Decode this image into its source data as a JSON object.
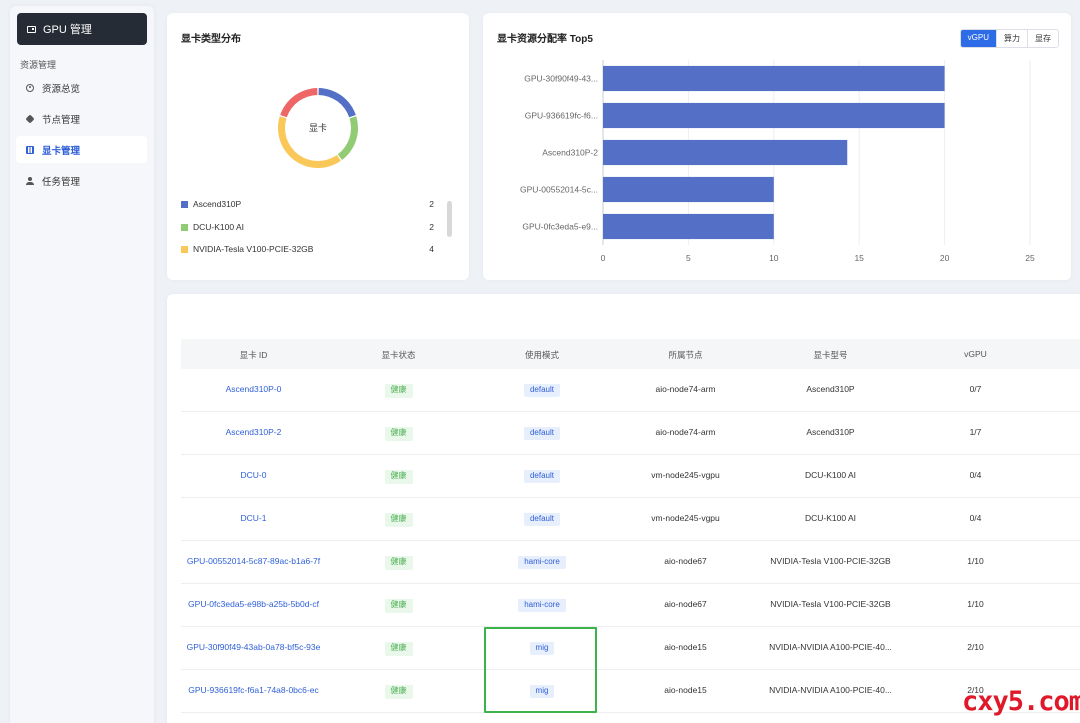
{
  "sidebar": {
    "brand": "GPU 管理",
    "section_title": "资源管理",
    "items": [
      {
        "label": "资源总览",
        "icon": "overview-icon"
      },
      {
        "label": "节点管理",
        "icon": "node-icon"
      },
      {
        "label": "显卡管理",
        "icon": "gpu-card-icon"
      },
      {
        "label": "任务管理",
        "icon": "task-icon"
      }
    ]
  },
  "pie_card": {
    "title": "显卡类型分布",
    "center_label": "显卡",
    "legend": [
      {
        "name": "Ascend310P",
        "value": "2",
        "color": "#5470c6"
      },
      {
        "name": "DCU-K100 AI",
        "value": "2",
        "color": "#91cc75"
      },
      {
        "name": "NVIDIA-Tesla V100-PCIE-32GB",
        "value": "4",
        "color": "#fac858"
      }
    ]
  },
  "bar_card": {
    "title": "显卡资源分配率 Top5",
    "tabs": [
      "vGPU",
      "算力",
      "显存"
    ],
    "active_tab": "vGPU"
  },
  "chart_data": [
    {
      "type": "pie",
      "title": "显卡类型分布",
      "categories": [
        "Ascend310P",
        "DCU-K100 AI",
        "NVIDIA-Tesla V100-PCIE-32GB",
        "NVIDIA-NVIDIA A100-PCIE-40..."
      ],
      "values": [
        2,
        2,
        4,
        2
      ],
      "colors": [
        "#5470c6",
        "#91cc75",
        "#fac858",
        "#ee6666"
      ],
      "center_label": "显卡"
    },
    {
      "type": "bar",
      "orientation": "horizontal",
      "title": "显卡资源分配率 Top5",
      "categories": [
        "GPU-30f90f49-43...",
        "GPU-936619fc-f6...",
        "Ascend310P-2",
        "GPU-00552014-5c...",
        "GPU-0fc3eda5-e9..."
      ],
      "values": [
        20,
        20,
        14.3,
        10,
        10
      ],
      "xlim": [
        0,
        25
      ],
      "xticks": [
        0,
        5,
        10,
        15,
        20,
        25
      ],
      "color": "#5470c6",
      "grid": true
    }
  ],
  "table": {
    "columns": [
      "显卡 ID",
      "显卡状态",
      "使用模式",
      "所属节点",
      "显卡型号",
      "vGPU"
    ],
    "rows": [
      {
        "id": "Ascend310P-0",
        "status": "健康",
        "mode": "default",
        "node": "aio-node74-arm",
        "model": "Ascend310P",
        "vgpu": "0/7"
      },
      {
        "id": "Ascend310P-2",
        "status": "健康",
        "mode": "default",
        "node": "aio-node74-arm",
        "model": "Ascend310P",
        "vgpu": "1/7"
      },
      {
        "id": "DCU-0",
        "status": "健康",
        "mode": "default",
        "node": "vm-node245-vgpu",
        "model": "DCU-K100 AI",
        "vgpu": "0/4"
      },
      {
        "id": "DCU-1",
        "status": "健康",
        "mode": "default",
        "node": "vm-node245-vgpu",
        "model": "DCU-K100 AI",
        "vgpu": "0/4"
      },
      {
        "id": "GPU-00552014-5c87-89ac-b1a6-7f",
        "status": "健康",
        "mode": "hami-core",
        "node": "aio-node67",
        "model": "NVIDIA-Tesla V100-PCIE-32GB",
        "vgpu": "1/10"
      },
      {
        "id": "GPU-0fc3eda5-e98b-a25b-5b0d-cf",
        "status": "健康",
        "mode": "hami-core",
        "node": "aio-node67",
        "model": "NVIDIA-Tesla V100-PCIE-32GB",
        "vgpu": "1/10"
      },
      {
        "id": "GPU-30f90f49-43ab-0a78-bf5c-93e",
        "status": "健康",
        "mode": "mig",
        "node": "aio-node15",
        "model": "NVIDIA-NVIDIA A100-PCIE-40...",
        "vgpu": "2/10"
      },
      {
        "id": "GPU-936619fc-f6a1-74a8-0bc6-ec",
        "status": "健康",
        "mode": "mig",
        "node": "aio-node15",
        "model": "NVIDIA-NVIDIA A100-PCIE-40...",
        "vgpu": "2/10"
      }
    ]
  },
  "watermark": "cxy5.com"
}
